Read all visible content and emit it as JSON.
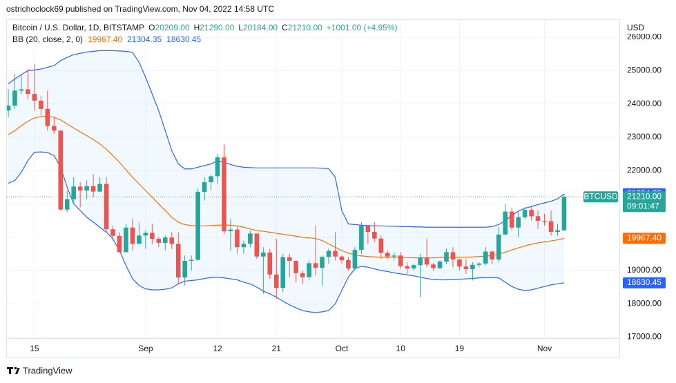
{
  "header": {
    "published": "ostrichoclock69 published on TradingView.com, Nov 04, 2022 14:58 UTC"
  },
  "footer": {
    "brand": "TradingView"
  },
  "chart_data": {
    "type": "candlestick",
    "title": "Bitcoin / U.S. Dollar, 1D, BITSTAMP",
    "ohlc_legend": [
      {
        "key": "O",
        "text": "20209.00"
      },
      {
        "key": "H",
        "text": "21290.00"
      },
      {
        "key": "L",
        "text": "20184.00"
      },
      {
        "key": "C",
        "text": "21210.00"
      }
    ],
    "change": "+1001.00 (+4.95%)",
    "currency": "USD",
    "up_color": "#26a69a",
    "down_color": "#ef5350",
    "categories": [
      null,
      null,
      null,
      null,
      "15",
      null,
      null,
      null,
      null,
      null,
      null,
      null,
      null,
      null,
      null,
      null,
      null,
      null,
      null,
      null,
      null,
      "Sep",
      null,
      null,
      null,
      null,
      null,
      null,
      null,
      null,
      null,
      null,
      "12",
      null,
      null,
      null,
      null,
      null,
      null,
      null,
      null,
      "21",
      null,
      null,
      null,
      null,
      null,
      null,
      null,
      null,
      null,
      "Oct",
      null,
      null,
      null,
      null,
      null,
      null,
      null,
      null,
      "10",
      null,
      null,
      null,
      null,
      null,
      null,
      null,
      null,
      "19",
      null,
      null,
      null,
      null,
      null,
      null,
      null,
      null,
      null,
      null,
      null,
      null,
      "Nov",
      null,
      null,
      null
    ],
    "open": [
      23800,
      23950,
      24400,
      24440,
      24300,
      24100,
      23850,
      23340,
      23200,
      20830,
      21140,
      21520,
      21400,
      21530,
      21370,
      21600,
      20240,
      20040,
      19550,
      20290,
      19800,
      20050,
      20130,
      19950,
      19830,
      19990,
      19800,
      18790,
      19290,
      19320,
      21360,
      21650,
      21830,
      22400,
      20180,
      20230,
      19700,
      19800,
      20110,
      19420,
      19540,
      18880,
      18480,
      19400,
      19290,
      18920,
      18800,
      19220,
      19080,
      19410,
      19590,
      19420,
      19310,
      19060,
      19620,
      20340,
      20160,
      19960,
      19530,
      19420,
      19450,
      19130,
      19060,
      19160,
      19380,
      19180,
      19070,
      19270,
      19550,
      19330,
      19120,
      19040,
      19170,
      19210,
      19570,
      19330,
      20080,
      20770,
      20290,
      20600,
      20820,
      20630,
      20490,
      20480,
      20160,
      20209
    ],
    "high": [
      24450,
      24900,
      24900,
      25050,
      25200,
      24250,
      24400,
      23600,
      23200,
      21400,
      21800,
      21650,
      21700,
      21900,
      21800,
      21800,
      20350,
      20150,
      20400,
      20550,
      20450,
      20200,
      20400,
      20000,
      20050,
      20150,
      20150,
      19450,
      19450,
      21450,
      21800,
      21880,
      22500,
      22790,
      20550,
      20350,
      19900,
      20200,
      20100,
      19700,
      19650,
      19950,
      19500,
      19500,
      19300,
      19000,
      19300,
      20350,
      19450,
      19650,
      20150,
      19450,
      19400,
      19700,
      20450,
      20350,
      20450,
      20050,
      19600,
      19550,
      19550,
      19250,
      19200,
      19500,
      19950,
      19230,
      19300,
      19650,
      19700,
      19350,
      19350,
      19250,
      19250,
      19700,
      19600,
      20300,
      21000,
      20880,
      20750,
      20900,
      20950,
      20800,
      20700,
      20800,
      20400,
      21290
    ],
    "low": [
      23600,
      23850,
      24300,
      24150,
      23800,
      23650,
      23200,
      23100,
      20800,
      20760,
      21000,
      20900,
      21150,
      21200,
      21350,
      20150,
      19900,
      19550,
      19550,
      19600,
      19800,
      19650,
      19800,
      19700,
      19600,
      19650,
      18600,
      18550,
      19000,
      19300,
      21100,
      21400,
      21600,
      20100,
      19600,
      19500,
      19500,
      19700,
      19350,
      18300,
      18750,
      18150,
      18350,
      18800,
      18650,
      18600,
      18700,
      18850,
      18550,
      19200,
      19300,
      19200,
      19000,
      19000,
      19500,
      19800,
      19850,
      19350,
      19350,
      19300,
      19050,
      18900,
      19000,
      18200,
      19100,
      19000,
      19050,
      19200,
      19100,
      19000,
      18900,
      18700,
      19100,
      19150,
      19200,
      19250,
      20050,
      20200,
      20000,
      20550,
      20500,
      20250,
      20350,
      20050,
      20050,
      20184
    ],
    "close": [
      23950,
      24400,
      24440,
      24300,
      24100,
      23850,
      23340,
      23200,
      20830,
      21140,
      21520,
      21400,
      21530,
      21370,
      21600,
      20240,
      20040,
      19550,
      20290,
      19800,
      20050,
      20130,
      19950,
      19830,
      19990,
      19800,
      18790,
      19290,
      19320,
      21360,
      21650,
      21830,
      22400,
      20180,
      20230,
      19700,
      19800,
      20110,
      19420,
      19540,
      18880,
      18480,
      19400,
      19290,
      18920,
      18800,
      19220,
      19080,
      19410,
      19590,
      19420,
      19310,
      19060,
      19620,
      20340,
      20160,
      19960,
      19530,
      19420,
      19450,
      19130,
      19060,
      19160,
      19380,
      19180,
      19070,
      19270,
      19550,
      19330,
      19120,
      19040,
      19170,
      19210,
      19570,
      19330,
      20080,
      20770,
      20290,
      20600,
      20820,
      20630,
      20490,
      20480,
      20160,
      20209,
      21210
    ],
    "price_tag": {
      "symbol": "BTCUSD",
      "label": "21210.00",
      "countdown": "09:01:47"
    },
    "indicator": {
      "name": "BB (20, close, 2, 0)",
      "band_fill": "rgba(33,150,243,0.06)",
      "series": [
        {
          "color": "#ff6d00",
          "last_label": "19967.40",
          "values": [
            23080,
            23200,
            23350,
            23480,
            23580,
            23620,
            23630,
            23600,
            23520,
            23400,
            23280,
            23160,
            23050,
            22930,
            22800,
            22640,
            22450,
            22250,
            22020,
            21800,
            21600,
            21400,
            21200,
            21000,
            20800,
            20600,
            20450,
            20380,
            20350,
            20340,
            20340,
            20350,
            20360,
            20370,
            20360,
            20340,
            20300,
            20250,
            20200,
            20180,
            20150,
            20120,
            20090,
            20060,
            20030,
            20000,
            19980,
            19960,
            19900,
            19800,
            19700,
            19600,
            19520,
            19470,
            19440,
            19420,
            19410,
            19400,
            19400,
            19400,
            19390,
            19390,
            19380,
            19380,
            19380,
            19380,
            19390,
            19390,
            19400,
            19400,
            19400,
            19410,
            19420,
            19430,
            19450,
            19490,
            19550,
            19620,
            19680,
            19740,
            19790,
            19830,
            19860,
            19890,
            19920,
            19967.4
          ]
        },
        {
          "color": "#2962ff",
          "last_label": "21304.35",
          "values": [
            24600,
            24750,
            24880,
            25000,
            25020,
            25050,
            25100,
            25150,
            25300,
            25400,
            25480,
            25520,
            25560,
            25580,
            25600,
            25600,
            25600,
            25590,
            25580,
            25550,
            25250,
            24800,
            24300,
            23800,
            23200,
            22600,
            22200,
            22050,
            22050,
            22100,
            22150,
            22200,
            22300,
            22250,
            22180,
            22130,
            22100,
            22090,
            22080,
            22080,
            22080,
            22080,
            22080,
            22080,
            22080,
            22080,
            22080,
            22080,
            22070,
            22060,
            21800,
            20800,
            20400,
            20380,
            20360,
            20350,
            20340,
            20340,
            20330,
            20330,
            20320,
            20320,
            20310,
            20310,
            20300,
            20300,
            20300,
            20300,
            20300,
            20300,
            20300,
            20300,
            20300,
            20300,
            20320,
            20380,
            20500,
            20650,
            20780,
            20870,
            20920,
            20980,
            21030,
            21080,
            21150,
            21304.35
          ]
        },
        {
          "color": "#2962ff",
          "last_label": "18630.45",
          "values": [
            21620,
            21700,
            21950,
            22300,
            22550,
            22560,
            22540,
            22450,
            22100,
            21500,
            21000,
            20800,
            20600,
            20450,
            20300,
            20150,
            19950,
            19600,
            19150,
            18750,
            18550,
            18450,
            18420,
            18420,
            18440,
            18480,
            18600,
            18680,
            18700,
            18720,
            18760,
            18790,
            18800,
            18780,
            18750,
            18720,
            18650,
            18600,
            18500,
            18380,
            18300,
            18200,
            18080,
            17970,
            17880,
            17800,
            17760,
            17740,
            17760,
            17800,
            18000,
            18400,
            18800,
            19050,
            19130,
            19100,
            19050,
            19000,
            18970,
            18930,
            18900,
            18870,
            18840,
            18800,
            18760,
            18730,
            18720,
            18720,
            18730,
            18740,
            18750,
            18760,
            18780,
            18790,
            18790,
            18780,
            18650,
            18520,
            18440,
            18400,
            18420,
            18470,
            18520,
            18570,
            18600,
            18630.45
          ]
        }
      ]
    },
    "ylim": [
      16970,
      26540
    ],
    "yticks": [
      {
        "value": 17000,
        "label": "17000.00"
      },
      {
        "value": 18000,
        "label": "18000.00"
      },
      {
        "value": 19000,
        "label": "19000.00"
      },
      {
        "value": 20000,
        "label": "20000.00"
      },
      {
        "value": 21000,
        "label": "21000.00"
      },
      {
        "value": 22000,
        "label": "22000.00"
      },
      {
        "value": 23000,
        "label": "23000.00"
      },
      {
        "value": 24000,
        "label": "24000.00"
      },
      {
        "value": 25000,
        "label": "25000.00"
      },
      {
        "value": 26000,
        "label": "26000.00"
      }
    ],
    "grid": true
  }
}
